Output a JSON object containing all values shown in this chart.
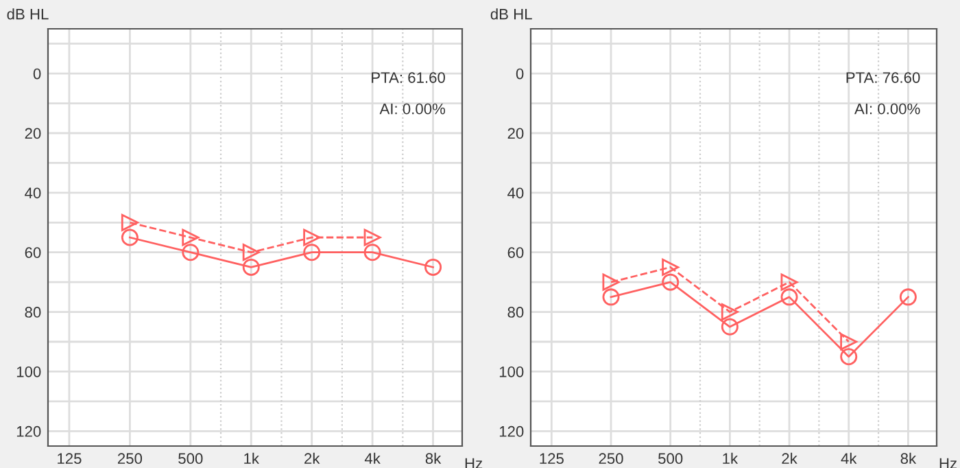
{
  "chart_data": [
    {
      "type": "line",
      "xlabel": "Hz",
      "ylabel": "dB HL",
      "categories": [
        "125",
        "250",
        "500",
        "1k",
        "2k",
        "4k",
        "8k"
      ],
      "ylim": [
        125,
        -15
      ],
      "yticks": [
        0,
        20,
        40,
        60,
        80,
        100,
        120
      ],
      "grid": true,
      "legend": false,
      "annotations": [
        "PTA: 61.60",
        "AI: 0.00%"
      ],
      "series": [
        {
          "color": "#ff6060",
          "marker": "circle",
          "line_style": "solid",
          "values": [
            null,
            55,
            60,
            65,
            60,
            60,
            65
          ]
        },
        {
          "color": "#ff6060",
          "marker": "triangle",
          "line_style": "dashed",
          "values": [
            null,
            50,
            55,
            60,
            55,
            55,
            null
          ]
        }
      ]
    },
    {
      "type": "line",
      "xlabel": "Hz",
      "ylabel": "dB HL",
      "categories": [
        "125",
        "250",
        "500",
        "1k",
        "2k",
        "4k",
        "8k"
      ],
      "ylim": [
        125,
        -15
      ],
      "yticks": [
        0,
        20,
        40,
        60,
        80,
        100,
        120
      ],
      "grid": true,
      "legend": false,
      "annotations": [
        "PTA: 76.60",
        "AI: 0.00%"
      ],
      "series": [
        {
          "color": "#ff6060",
          "marker": "circle",
          "line_style": "solid",
          "values": [
            null,
            75,
            70,
            85,
            75,
            95,
            75
          ]
        },
        {
          "color": "#ff6060",
          "marker": "triangle",
          "line_style": "dashed",
          "values": [
            null,
            70,
            65,
            80,
            70,
            90,
            null
          ]
        }
      ]
    }
  ]
}
